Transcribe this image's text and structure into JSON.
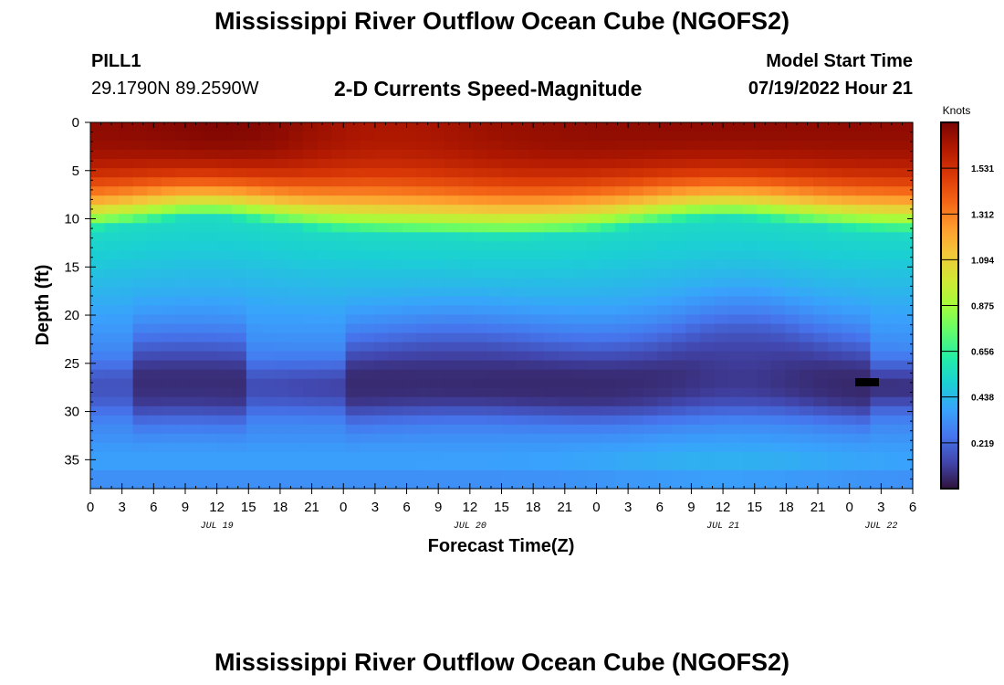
{
  "header": {
    "title": "Mississippi River Outflow Ocean Cube (NGOFS2)",
    "station": "PILL1",
    "coords": "29.1790N  89.2590W",
    "subtitle": "2-D Currents Speed-Magnitude",
    "model_label": "Model Start Time",
    "model_time": "07/19/2022 Hour 21"
  },
  "footer": {
    "title": "Mississippi River Outflow Ocean Cube (NGOFS2)"
  },
  "chart_data": {
    "type": "heatmap",
    "title": "2-D Currents Speed-Magnitude",
    "xlabel": "Forecast Time(Z)",
    "ylabel": "Depth (ft)",
    "x_hours_range": [
      0,
      78
    ],
    "x_tick_labels": [
      "0",
      "3",
      "6",
      "9",
      "12",
      "15",
      "18",
      "21",
      "0",
      "3",
      "6",
      "9",
      "12",
      "15",
      "18",
      "21",
      "0",
      "3",
      "6",
      "9",
      "12",
      "15",
      "18",
      "21",
      "0",
      "3",
      "6"
    ],
    "date_labels": [
      {
        "label": "JUL 19",
        "hour": 12
      },
      {
        "label": "JUL 20",
        "hour": 36
      },
      {
        "label": "JUL 21",
        "hour": 60
      },
      {
        "label": "JUL 22",
        "hour": 75
      }
    ],
    "y_range": [
      0,
      38
    ],
    "y_ticks": [
      0,
      5,
      10,
      15,
      20,
      25,
      30,
      35
    ],
    "colorbar": {
      "title": "Knots",
      "range": [
        0,
        1.75
      ],
      "ticks": [
        "1.531",
        "1.312",
        "1.094",
        "0.875",
        "0.656",
        "0.438",
        "0.219"
      ]
    },
    "field_description": {
      "surface_speed_knots": 1.7,
      "midwater_speed_knots": 0.55,
      "min_layer_depth_ft": 27.5,
      "min_layer_speed_knots": 0.05,
      "bottom_speed_knots": 0.38,
      "colormap": [
        "#30123b",
        "#4145ab",
        "#4675ed",
        "#39a2fc",
        "#1bcfd4",
        "#24eca6",
        "#61fc6c",
        "#a4fc3b",
        "#d1e834",
        "#f3c63a",
        "#fe9b2d",
        "#f36315",
        "#d93806",
        "#b11901",
        "#7a0402"
      ]
    }
  }
}
